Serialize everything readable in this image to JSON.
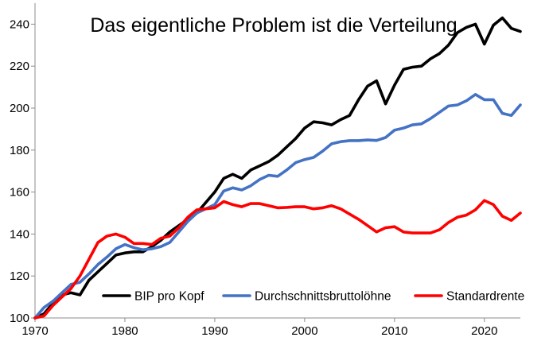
{
  "chart_data": {
    "type": "line",
    "title": "Das eigentliche Problem ist die Verteilung",
    "xlabel": "",
    "ylabel": "",
    "xlim": [
      1970,
      2024
    ],
    "ylim": [
      100,
      250
    ],
    "x_ticks": [
      1970,
      1980,
      1990,
      2000,
      2010,
      2020
    ],
    "y_ticks": [
      100,
      120,
      140,
      160,
      180,
      200,
      220,
      240
    ],
    "grid": false,
    "legend_position": "bottom-right",
    "x": [
      1970,
      1971,
      1972,
      1973,
      1974,
      1975,
      1976,
      1977,
      1978,
      1979,
      1980,
      1981,
      1982,
      1983,
      1984,
      1985,
      1986,
      1987,
      1988,
      1989,
      1990,
      1991,
      1992,
      1993,
      1994,
      1995,
      1996,
      1997,
      1998,
      1999,
      2000,
      2001,
      2002,
      2003,
      2004,
      2005,
      2006,
      2007,
      2008,
      2009,
      2010,
      2011,
      2012,
      2013,
      2014,
      2015,
      2016,
      2017,
      2018,
      2019,
      2020,
      2021,
      2022,
      2023,
      2024
    ],
    "series": [
      {
        "name": "BIP pro Kopf",
        "color": "#000000",
        "values": [
          100,
          102,
          107,
          111,
          112,
          111,
          118,
          122,
          126,
          130,
          131,
          131.5,
          131.5,
          134,
          137,
          141,
          144,
          147,
          150,
          155,
          160,
          166.5,
          168.5,
          166.5,
          170.5,
          172.5,
          174.5,
          177.5,
          181.5,
          185.5,
          190.5,
          193.5,
          193,
          192,
          194.5,
          196.5,
          204,
          210.5,
          213,
          202,
          211,
          218.5,
          219.5,
          220,
          223.5,
          226,
          230,
          236,
          238.5,
          240,
          230.5,
          239.5,
          243,
          238,
          236.5
        ]
      },
      {
        "name": "Durchschnittsbruttolöhne",
        "color": "#4472c4",
        "values": [
          100,
          105,
          108,
          112,
          116,
          117,
          121,
          125.5,
          129,
          133,
          135,
          133.5,
          132.5,
          133,
          134,
          136,
          141,
          146,
          150,
          152,
          154,
          160.5,
          162,
          161,
          163,
          166,
          168,
          167.5,
          170.5,
          174,
          175.5,
          176.5,
          179.5,
          183,
          184,
          184.5,
          184.5,
          184.8,
          184.6,
          186,
          189.5,
          190.5,
          192,
          192.5,
          195,
          198,
          201,
          201.5,
          203.5,
          206.5,
          204,
          204,
          197.5,
          196.5,
          201.5
        ]
      },
      {
        "name": "Standardrente",
        "color": "#ff0000",
        "values": [
          100,
          101,
          106,
          110,
          114,
          120,
          128,
          136,
          139,
          140,
          138.5,
          135.5,
          135.5,
          135,
          138,
          139,
          143,
          148,
          151.5,
          152,
          152.5,
          155.5,
          154,
          153,
          154.5,
          154.5,
          153.5,
          152.5,
          152.7,
          153,
          153,
          152,
          152.5,
          153.5,
          152,
          149.5,
          147,
          144,
          141,
          143,
          143.5,
          141,
          140.5,
          140.5,
          140.5,
          142,
          145.5,
          148,
          149,
          151.5,
          156,
          154,
          148.5,
          146.5,
          150
        ]
      }
    ]
  }
}
